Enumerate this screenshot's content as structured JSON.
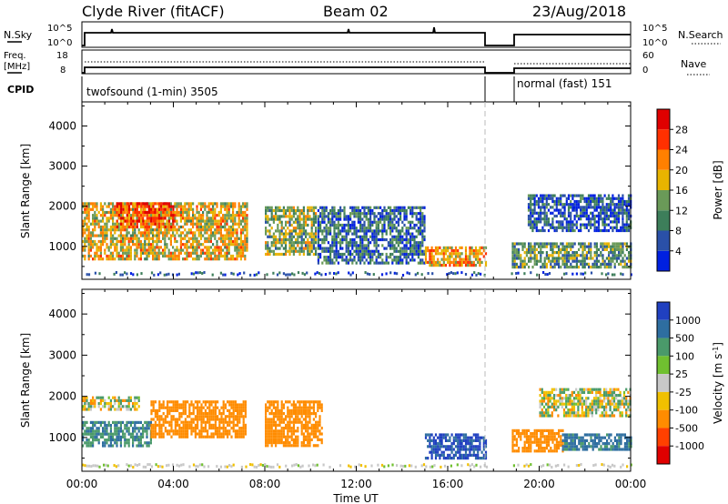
{
  "header": {
    "title": "Clyde River (fitACF)",
    "beam": "Beam 02",
    "date": "23/Aug/2018"
  },
  "panels": {
    "nsky": {
      "label": "N.Sky",
      "left_ticks": [
        "10^5",
        "10^0"
      ],
      "right_ticks": [
        "10^5",
        "10^0"
      ],
      "right_label": "N.Search"
    },
    "freq": {
      "label_line1": "Freq.",
      "label_line2": "[MHz]",
      "left_ticks": [
        "18",
        "8"
      ],
      "right_ticks": [
        "60",
        "0"
      ],
      "right_label": "Nave"
    },
    "cpid": {
      "label": "CPID",
      "segments": [
        {
          "name": "twofsound (1-min) 3505",
          "start": 0.0,
          "end": 17.7
        },
        {
          "name": "normal (fast) 151",
          "start": 18.8,
          "end": 24.0
        }
      ]
    }
  },
  "colors": {
    "power": [
      "#0020e0",
      "#2a50a8",
      "#3d7e5a",
      "#6a9a58",
      "#e8b400",
      "#ff8000",
      "#ff3000",
      "#e00000"
    ],
    "velocity": [
      "#2040c0",
      "#2e6ea0",
      "#4a9a6a",
      "#70c030",
      "#c8c8c8",
      "#f0c000",
      "#ff8c00",
      "#ff4000",
      "#e00000"
    ]
  },
  "chart_data": [
    {
      "type": "heatmap",
      "name": "power",
      "ylabel": "Slant Range [km]",
      "xlabel": "Time UT",
      "xlim": [
        0,
        24
      ],
      "ylim": [
        180,
        4600
      ],
      "x_tick_labels": [
        "00:00",
        "04:00",
        "08:00",
        "12:00",
        "16:00",
        "20:00",
        "00:00"
      ],
      "x_ticks": [
        0,
        4,
        8,
        12,
        16,
        20,
        24
      ],
      "y_ticks": [
        1000,
        2000,
        3000,
        4000
      ],
      "colorbar": {
        "label": "Power [dB]",
        "ticks": [
          "4",
          "8",
          "12",
          "16",
          "20",
          "24",
          "28"
        ],
        "range": [
          0,
          32
        ]
      },
      "data_gap": [
        17.75,
        18.75
      ],
      "echo_regions": [
        {
          "t": [
            0.0,
            7.2
          ],
          "r": [
            700,
            2100
          ],
          "level": 18
        },
        {
          "t": [
            1.5,
            4.0
          ],
          "r": [
            1500,
            2100
          ],
          "level": 26
        },
        {
          "t": [
            8.0,
            10.2
          ],
          "r": [
            800,
            2000
          ],
          "level": 14
        },
        {
          "t": [
            10.3,
            15.0
          ],
          "r": [
            600,
            2000
          ],
          "level": 8
        },
        {
          "t": [
            15.0,
            17.7
          ],
          "r": [
            500,
            1000
          ],
          "level": 20
        },
        {
          "t": [
            18.8,
            24.0
          ],
          "r": [
            500,
            1100
          ],
          "level": 12
        },
        {
          "t": [
            19.5,
            24.0
          ],
          "r": [
            1400,
            2300
          ],
          "level": 6
        }
      ]
    },
    {
      "type": "heatmap",
      "name": "velocity",
      "ylabel": "Slant Range [km]",
      "xlabel": "Time UT",
      "xlim": [
        0,
        24
      ],
      "ylim": [
        180,
        4600
      ],
      "x_tick_labels": [
        "00:00",
        "04:00",
        "08:00",
        "12:00",
        "16:00",
        "20:00",
        "00:00"
      ],
      "x_ticks": [
        0,
        4,
        8,
        12,
        16,
        20,
        24
      ],
      "y_ticks": [
        1000,
        2000,
        3000,
        4000
      ],
      "colorbar": {
        "label": "Velocity [m s^-1]",
        "ticks": [
          "1000",
          "500",
          "100",
          "25",
          "-25",
          "-100",
          "-500",
          "-1000"
        ]
      },
      "data_gap": [
        17.75,
        18.75
      ],
      "echo_regions": [
        {
          "t": [
            0.0,
            3.0
          ],
          "r": [
            800,
            1400
          ],
          "level": 300
        },
        {
          "t": [
            3.0,
            7.2
          ],
          "r": [
            1000,
            1900
          ],
          "level": -300
        },
        {
          "t": [
            0.0,
            2.5
          ],
          "r": [
            1700,
            2000
          ],
          "level": 0
        },
        {
          "t": [
            8.0,
            10.5
          ],
          "r": [
            800,
            1900
          ],
          "level": -300
        },
        {
          "t": [
            15.0,
            17.7
          ],
          "r": [
            500,
            1100
          ],
          "level": 800
        },
        {
          "t": [
            18.8,
            21.0
          ],
          "r": [
            700,
            1200
          ],
          "level": -300
        },
        {
          "t": [
            21.0,
            24.0
          ],
          "r": [
            700,
            1100
          ],
          "level": 400
        },
        {
          "t": [
            20.0,
            24.0
          ],
          "r": [
            1500,
            2200
          ],
          "level": 0
        }
      ]
    }
  ]
}
